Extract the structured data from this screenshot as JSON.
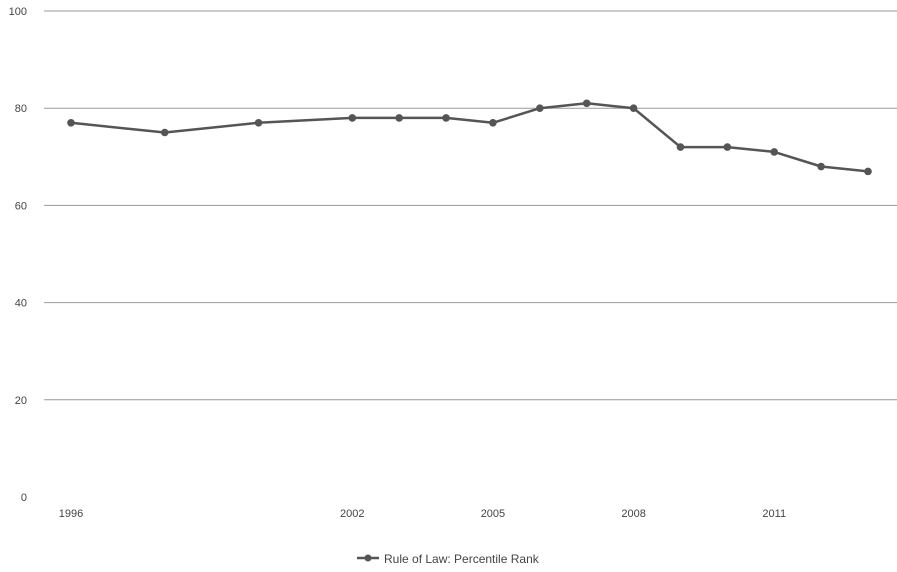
{
  "chart_data": {
    "type": "line",
    "title": "",
    "xlabel": "",
    "ylabel": "",
    "x": [
      1996,
      1998,
      2000,
      2002,
      2003,
      2004,
      2005,
      2006,
      2007,
      2008,
      2009,
      2010,
      2011,
      2012,
      2013
    ],
    "x_ticks": [
      1996,
      2002,
      2005,
      2008,
      2011
    ],
    "xlim": [
      1996,
      2013
    ],
    "ylim": [
      0,
      100
    ],
    "y_ticks": [
      0,
      20,
      40,
      60,
      80,
      100
    ],
    "grid": "horizontal",
    "legend_position": "bottom",
    "series": [
      {
        "name": "Rule of Law: Percentile Rank",
        "color": "#555555",
        "values": [
          77,
          75,
          77,
          78,
          78,
          78,
          77,
          80,
          81,
          80,
          72,
          72,
          71,
          68,
          67
        ]
      }
    ]
  }
}
